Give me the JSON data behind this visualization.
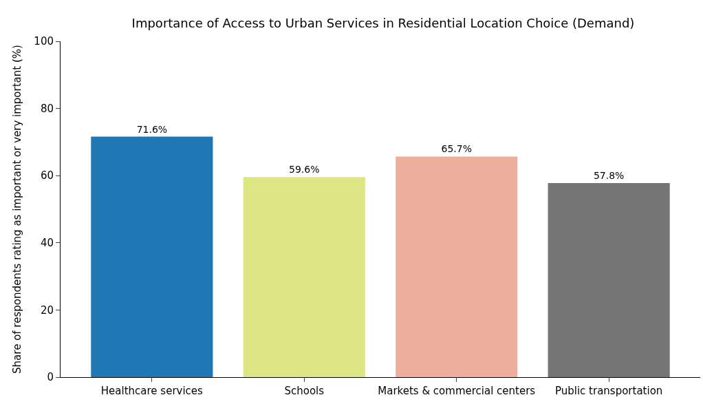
{
  "chart_data": {
    "type": "bar",
    "title": "Importance of Access to Urban Services in Residential Location Choice (Demand)",
    "ylabel": "Share of respondents rating as important or very important (%)",
    "categories": [
      "Healthcare services",
      "Schools",
      "Markets & commercial centers",
      "Public transportation"
    ],
    "values": [
      71.6,
      59.6,
      65.7,
      57.8
    ],
    "colors": [
      "#1f77b4",
      "#dce685",
      "#eeb09c",
      "#757575"
    ],
    "value_labels": [
      "71.6%",
      "59.6%",
      "65.7%",
      "57.8%"
    ],
    "ylim": [
      0,
      100
    ],
    "yticks": [
      0,
      20,
      40,
      60,
      80,
      100
    ]
  }
}
